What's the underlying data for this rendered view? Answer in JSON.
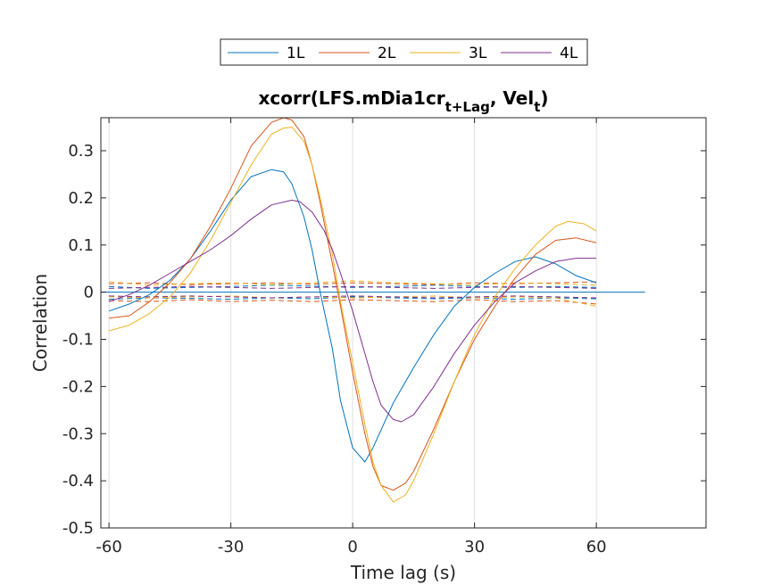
{
  "chart_data": {
    "type": "line",
    "title": {
      "main": "xcorr(LFS.mDia1cr",
      "sub1": "t+Lag",
      "mid": ", Vel",
      "sub2": "t",
      "end": ")"
    },
    "xlabel": "Time lag (s)",
    "ylabel": "Correlation",
    "xlim": [
      -62,
      87
    ],
    "ylim": [
      -0.5,
      0.37
    ],
    "xticks": [
      -60,
      -30,
      0,
      30,
      60
    ],
    "xtick_labels": [
      "-60",
      "-30",
      "0",
      "30",
      "60"
    ],
    "yticks": [
      -0.5,
      -0.4,
      -0.3,
      -0.2,
      -0.1,
      0,
      0.1,
      0.2,
      0.3
    ],
    "ytick_labels": [
      "-0.5",
      "-0.4",
      "-0.3",
      "-0.2",
      "-0.1",
      "0",
      "0.1",
      "0.2",
      "0.3"
    ],
    "grid": "vertical",
    "legend_placement": "top-center",
    "zero_line": {
      "x": [
        -62,
        72
      ],
      "y": 0,
      "color": "#0072BD"
    },
    "series": [
      {
        "name": "1L",
        "color": "#0072BD",
        "x": [
          -60,
          -55,
          -50,
          -45,
          -40,
          -35,
          -30,
          -25,
          -20,
          -17,
          -15,
          -12,
          -10,
          -8,
          -5,
          -3,
          0,
          3,
          5,
          10,
          15,
          20,
          25,
          30,
          35,
          40,
          45,
          50,
          55,
          60
        ],
        "y": [
          -0.04,
          -0.025,
          -0.005,
          0.025,
          0.07,
          0.13,
          0.195,
          0.245,
          0.26,
          0.255,
          0.23,
          0.16,
          0.09,
          0.0,
          -0.12,
          -0.23,
          -0.33,
          -0.36,
          -0.33,
          -0.235,
          -0.16,
          -0.09,
          -0.03,
          0.01,
          0.04,
          0.065,
          0.075,
          0.06,
          0.035,
          0.02
        ]
      },
      {
        "name": "2L",
        "color": "#D95319",
        "x": [
          -60,
          -55,
          -50,
          -45,
          -40,
          -35,
          -30,
          -25,
          -20,
          -17,
          -15,
          -12,
          -10,
          -8,
          -5,
          -3,
          0,
          3,
          5,
          7,
          10,
          13,
          15,
          20,
          25,
          30,
          35,
          40,
          45,
          50,
          55,
          60
        ],
        "y": [
          -0.055,
          -0.05,
          -0.02,
          0.02,
          0.07,
          0.14,
          0.22,
          0.31,
          0.36,
          0.37,
          0.365,
          0.33,
          0.27,
          0.19,
          0.06,
          -0.03,
          -0.17,
          -0.3,
          -0.37,
          -0.41,
          -0.42,
          -0.405,
          -0.38,
          -0.29,
          -0.19,
          -0.1,
          -0.03,
          0.03,
          0.08,
          0.11,
          0.115,
          0.105
        ]
      },
      {
        "name": "3L",
        "color": "#EDB120",
        "x": [
          -60,
          -55,
          -50,
          -45,
          -40,
          -35,
          -30,
          -25,
          -20,
          -17,
          -15,
          -12,
          -10,
          -8,
          -5,
          -3,
          0,
          3,
          5,
          7,
          10,
          13,
          15,
          20,
          25,
          30,
          35,
          40,
          45,
          50,
          53,
          57,
          60
        ],
        "y": [
          -0.082,
          -0.07,
          -0.045,
          -0.01,
          0.04,
          0.11,
          0.19,
          0.27,
          0.335,
          0.348,
          0.35,
          0.32,
          0.27,
          0.2,
          0.08,
          -0.02,
          -0.15,
          -0.28,
          -0.36,
          -0.41,
          -0.445,
          -0.43,
          -0.4,
          -0.3,
          -0.19,
          -0.09,
          -0.01,
          0.05,
          0.1,
          0.14,
          0.15,
          0.145,
          0.13
        ]
      },
      {
        "name": "4L",
        "color": "#7E2F8E",
        "x": [
          -60,
          -55,
          -50,
          -45,
          -40,
          -35,
          -30,
          -25,
          -20,
          -15,
          -13,
          -10,
          -7,
          -5,
          -3,
          0,
          3,
          5,
          7,
          10,
          12,
          15,
          20,
          25,
          30,
          35,
          40,
          45,
          50,
          55,
          60
        ],
        "y": [
          -0.02,
          -0.005,
          0.015,
          0.04,
          0.065,
          0.09,
          0.12,
          0.155,
          0.185,
          0.195,
          0.192,
          0.17,
          0.13,
          0.09,
          0.04,
          -0.04,
          -0.13,
          -0.19,
          -0.24,
          -0.27,
          -0.275,
          -0.26,
          -0.2,
          -0.13,
          -0.07,
          -0.02,
          0.02,
          0.045,
          0.065,
          0.072,
          0.072
        ]
      }
    ],
    "null_bands": {
      "note": "dashed lines near zero",
      "x": [
        -60,
        -50,
        -40,
        -30,
        -20,
        -10,
        0,
        10,
        20,
        30,
        40,
        50,
        60
      ],
      "lines": [
        {
          "color": "#0072BD",
          "y": [
            0.012,
            0.008,
            0.01,
            0.012,
            0.015,
            0.013,
            0.01,
            0.012,
            0.015,
            0.012,
            0.01,
            0.012,
            0.01
          ]
        },
        {
          "color": "#0072BD",
          "y": [
            -0.015,
            -0.012,
            -0.013,
            -0.015,
            -0.012,
            -0.014,
            -0.01,
            -0.012,
            -0.014,
            -0.012,
            -0.015,
            -0.012,
            -0.014
          ]
        },
        {
          "color": "#D95319",
          "y": [
            0.018,
            0.02,
            0.016,
            0.018,
            0.02,
            0.017,
            0.02,
            0.018,
            0.016,
            0.02,
            0.018,
            0.02,
            0.022
          ]
        },
        {
          "color": "#D95319",
          "y": [
            -0.018,
            -0.02,
            -0.016,
            -0.02,
            -0.017,
            -0.02,
            -0.016,
            -0.018,
            -0.02,
            -0.016,
            -0.02,
            -0.018,
            -0.025
          ]
        },
        {
          "color": "#EDB120",
          "y": [
            0.022,
            0.015,
            0.018,
            0.02,
            0.016,
            0.02,
            0.024,
            0.02,
            0.018,
            0.015,
            0.02,
            0.018,
            0.015
          ]
        },
        {
          "color": "#EDB120",
          "y": [
            -0.01,
            -0.012,
            -0.01,
            -0.008,
            -0.012,
            -0.01,
            -0.012,
            -0.01,
            -0.008,
            -0.012,
            -0.01,
            -0.012,
            -0.03
          ]
        },
        {
          "color": "#7E2F8E",
          "y": [
            0.008,
            0.01,
            0.012,
            0.01,
            0.008,
            0.01,
            0.012,
            0.01,
            0.008,
            0.01,
            0.012,
            0.01,
            0.008
          ]
        },
        {
          "color": "#7E2F8E",
          "y": [
            -0.008,
            -0.01,
            -0.008,
            -0.01,
            -0.012,
            -0.01,
            -0.008,
            -0.01,
            -0.012,
            -0.01,
            -0.008,
            -0.01,
            -0.012
          ]
        }
      ]
    }
  }
}
